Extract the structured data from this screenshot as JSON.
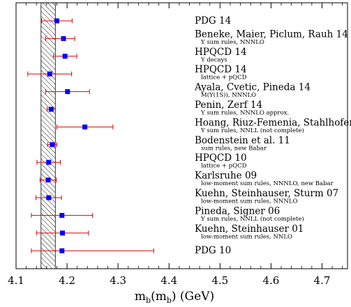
{
  "chart_data": {
    "type": "scatter",
    "title": "",
    "xlabel": "m_b(m_b) (GeV)",
    "xlabel_parts": {
      "m": "m",
      "b1": "b",
      "open": "(m",
      "b2": "b",
      "close": ") (GeV)"
    },
    "xlim": [
      4.1,
      4.75
    ],
    "x_ticks": [
      4.1,
      4.2,
      4.3,
      4.4,
      4.5,
      4.6,
      4.7
    ],
    "x_tick_labels": [
      "4.1",
      "4.2",
      "4.3",
      "4.4",
      "4.5",
      "4.6",
      "4.7"
    ],
    "band": {
      "low": 4.149,
      "high": 4.177,
      "style": "hatched"
    },
    "marker_color": "#0000ff",
    "errorbar_color": "#dd0000",
    "entries": [
      {
        "label": "PDG 14",
        "sub": "",
        "value": 4.18,
        "err_low": 0.03,
        "err_high": 0.03
      },
      {
        "label": "Beneke, Maier, Piclum, Rauh 14",
        "sub": "Υ sum rules, NNNLO",
        "value": 4.193,
        "err_low": 0.035,
        "err_high": 0.022
      },
      {
        "label": "HPQCD 14",
        "sub": "Υ decays",
        "value": 4.196,
        "err_low": 0.023,
        "err_high": 0.023
      },
      {
        "label": "HPQCD 14",
        "sub": "lattice + pQCD",
        "value": 4.166,
        "err_low": 0.043,
        "err_high": 0.043
      },
      {
        "label": "Ayala, Cvetic, Pineda 14",
        "sub": "M(Υ(1S)), NNNLO",
        "value": 4.201,
        "err_low": 0.043,
        "err_high": 0.043
      },
      {
        "label": "Penin, Zerf 14",
        "sub": "Υ sum rules, NNNLO approx.",
        "value": 4.169,
        "err_low": 0.008,
        "err_high": 0.008
      },
      {
        "label": "Hoang, Riuz-Femenia, Stahlhofen 12",
        "sub": "Υ sum rules, NNLL (not complete)",
        "value": 4.235,
        "err_low": 0.055,
        "err_high": 0.055
      },
      {
        "label": "Bodenstein et al. 11",
        "sub": "sum rules, new Babar",
        "value": 4.171,
        "err_low": 0.009,
        "err_high": 0.009
      },
      {
        "label": "HPQCD 10",
        "sub": "lattice + pQCD",
        "value": 4.164,
        "err_low": 0.023,
        "err_high": 0.023
      },
      {
        "label": "Karlsruhe 09",
        "sub": "low-moment sum rules, NNNLO, new Babar",
        "value": 4.163,
        "err_low": 0.016,
        "err_high": 0.016
      },
      {
        "label": "Kuehn, Steinhauser, Sturm 07",
        "sub": "low-moment sum rules, NNNLO",
        "value": 4.164,
        "err_low": 0.025,
        "err_high": 0.025
      },
      {
        "label": "Pineda, Signer 06",
        "sub": "Υ sum rules, NNLL (not complete)",
        "value": 4.19,
        "err_low": 0.06,
        "err_high": 0.06
      },
      {
        "label": "Kuehn, Steinhauser 01",
        "sub": "low-moment sum rules, NNLO",
        "value": 4.191,
        "err_low": 0.051,
        "err_high": 0.051
      },
      {
        "label": "PDG 10",
        "sub": "",
        "value": 4.19,
        "err_low": 0.06,
        "err_high": 0.18
      }
    ]
  }
}
